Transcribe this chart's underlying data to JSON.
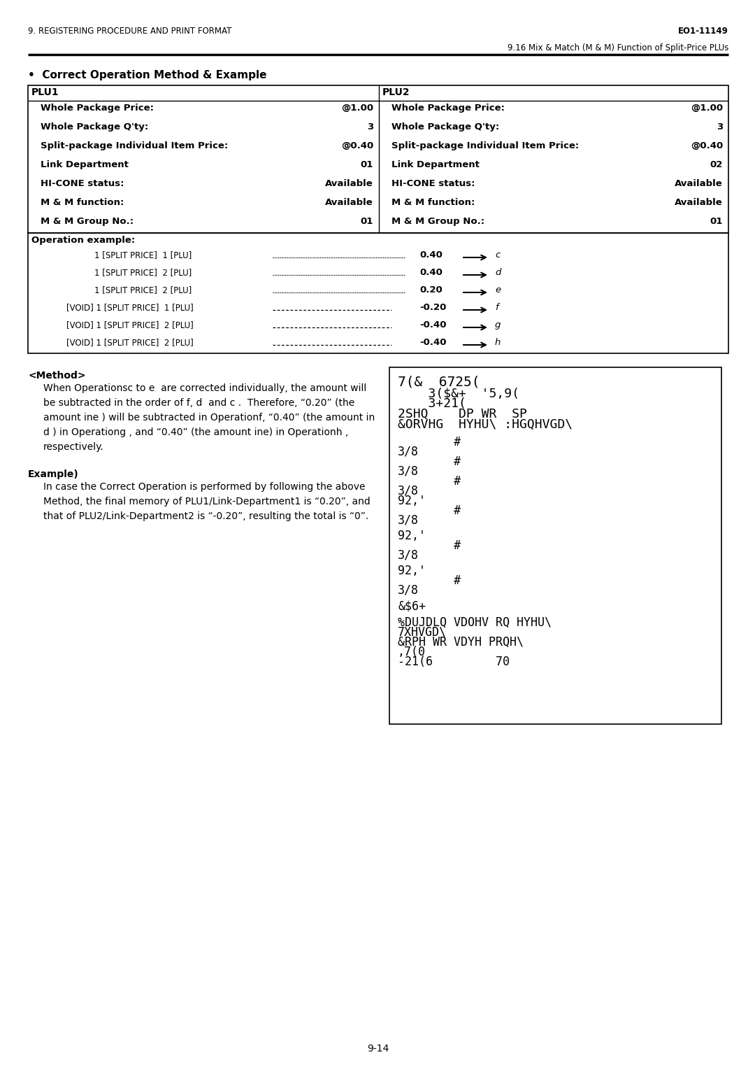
{
  "header_left": "9. REGISTERING PROCEDURE AND PRINT FORMAT",
  "header_right": "EO1-11149",
  "subheader_right": "9.16 Mix & Match (M & M) Function of Split-Price PLUs",
  "section_title": "•  Correct Operation Method & Example",
  "plu1_header": "PLU1",
  "plu2_header": "PLU2",
  "plu_rows": [
    [
      "Whole Package Price:",
      "@1.00",
      "Whole Package Price:",
      "@1.00"
    ],
    [
      "Whole Package Q'ty:",
      "3",
      "Whole Package Q'ty:",
      "3"
    ],
    [
      "Split-package Individual Item Price:",
      "@0.40",
      "Split-package Individual Item Price:",
      "@0.40"
    ],
    [
      "Link Department",
      "01",
      "Link Department",
      "02"
    ],
    [
      "HI-CONE status:",
      "Available",
      "HI-CONE status:",
      "Available"
    ],
    [
      "M & M function:",
      "Available",
      "M & M function:",
      "Available"
    ],
    [
      "M & M Group No.:",
      "01",
      "M & M Group No.:",
      "01"
    ]
  ],
  "op_example_label": "Operation example:",
  "op_rows": [
    [
      "    1 [SPLIT PRICE]  1 [PLU]",
      "0.40",
      "c",
      false
    ],
    [
      "    1 [SPLIT PRICE]  2 [PLU]",
      "0.40",
      "d",
      false
    ],
    [
      "    1 [SPLIT PRICE]  2 [PLU]",
      "0.20",
      "e",
      false
    ],
    [
      "[VOID] 1 [SPLIT PRICE]  1 [PLU]",
      "-0.20",
      "f",
      true
    ],
    [
      "[VOID] 1 [SPLIT PRICE]  2 [PLU]",
      "-0.40",
      "g",
      true
    ],
    [
      "[VOID] 1 [SPLIT PRICE]  2 [PLU]",
      "-0.40",
      "h",
      true
    ]
  ],
  "method_header": "<Method>",
  "method_lines": [
    "When Operationsc to e  are corrected individually, the amount will",
    "be subtracted in the order of f, d  and c .  Therefore, “0.20” (the",
    "amount ine ) will be subtracted in Operationf, “0.40” (the amount in",
    "d ) in Operationg , and “0.40” (the amount ine) in Operationh ,",
    "respectively."
  ],
  "example_header": "Example)",
  "example_lines": [
    "In case the Correct Operation is performed by following the above",
    "Method, the final memory of PLU1/Link-Department1 is “0.20”, and",
    "that of PLU2/Link-Department2 is “-0.20”, resulting the total is “0”."
  ],
  "receipt_lines": [
    [
      "7(&  6725(",
      14
    ],
    [
      "    3($&+  '5,9(",
      13
    ],
    [
      "    3+21(",
      13
    ],
    [
      "2SHQ    DP WR  SP",
      13
    ],
    [
      "&ORVHG  HYHU\\ :HGQHVGD\\",
      13
    ],
    [
      "",
      8
    ],
    [
      "        #",
      12
    ],
    [
      "3/8",
      12
    ],
    [
      "        #",
      12
    ],
    [
      "3/8",
      12
    ],
    [
      "        #",
      12
    ],
    [
      "3/8",
      12
    ],
    [
      "92,'",
      12
    ],
    [
      "        #",
      12
    ],
    [
      "3/8",
      12
    ],
    [
      "",
      6
    ],
    [
      "92,'",
      12
    ],
    [
      "        #",
      12
    ],
    [
      "3/8",
      12
    ],
    [
      "",
      6
    ],
    [
      "92,'",
      12
    ],
    [
      "        #",
      12
    ],
    [
      "3/8",
      12
    ],
    [
      "",
      6
    ],
    [
      "&$6+",
      12
    ],
    [
      "",
      8
    ],
    [
      "%DUJDLQ VDOHV RQ HYHU\\",
      12
    ],
    [
      "7XHVGD\\",
      12
    ],
    [
      "&RPH WR VDYH PRQH\\",
      12
    ],
    [
      ",7(0",
      12
    ],
    [
      "-21(6         70",
      12
    ]
  ],
  "footer_page": "9-14",
  "bg_color": "#ffffff"
}
